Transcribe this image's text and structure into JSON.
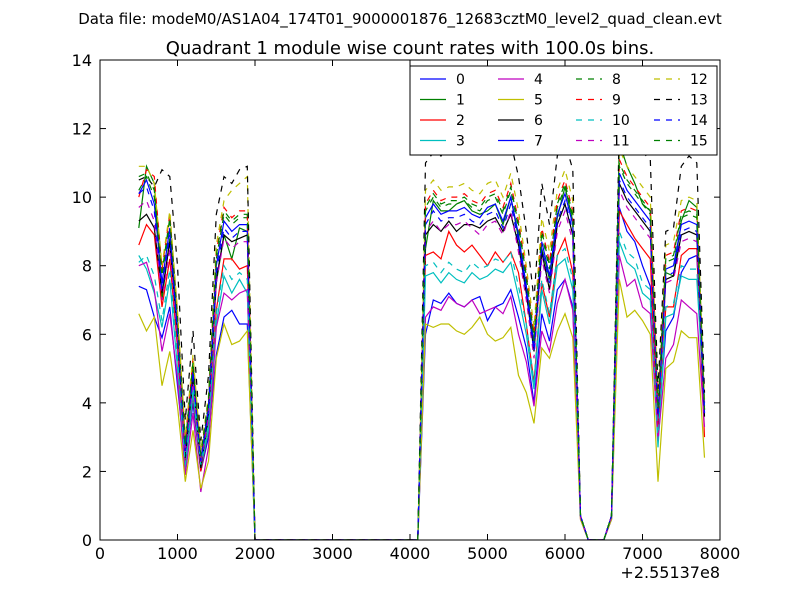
{
  "header": {
    "data_file": "Data file: modeM0/AS1A04_174T01_9000001876_12683cztM0_level2_quad_clean.evt"
  },
  "chart_data": {
    "type": "line",
    "title": "Quadrant 1 module wise count rates with 100.0s bins.",
    "xlabel": "",
    "ylabel": "",
    "x_offset_label": "+2.55137e8",
    "xlim": [
      0,
      8000
    ],
    "ylim": [
      0,
      14
    ],
    "x_ticks": [
      0,
      1000,
      2000,
      3000,
      4000,
      5000,
      6000,
      7000,
      8000
    ],
    "y_ticks": [
      0,
      2,
      4,
      6,
      8,
      10,
      12,
      14
    ],
    "grid": false,
    "legend_position": "top-right",
    "legend_columns": 4,
    "x": [
      500,
      600,
      700,
      800,
      900,
      1000,
      1100,
      1200,
      1300,
      1400,
      1500,
      1600,
      1700,
      1800,
      1900,
      2000,
      4100,
      4200,
      4300,
      4400,
      4500,
      4600,
      4700,
      4800,
      4900,
      5000,
      5100,
      5200,
      5300,
      5400,
      5500,
      5600,
      5700,
      5800,
      5900,
      6000,
      6100,
      6200,
      6300,
      6400,
      6500,
      6600,
      6700,
      6800,
      6900,
      7000,
      7100,
      7200,
      7300,
      7400,
      7500,
      7600,
      7700,
      7800
    ],
    "series": [
      {
        "name": "0",
        "color": "#0000ff",
        "dash": "solid",
        "values": [
          7.4,
          7.3,
          6.5,
          5.9,
          6.8,
          4.5,
          2.2,
          4.0,
          2.0,
          3.0,
          5.4,
          6.5,
          6.7,
          6.3,
          6.3,
          0,
          0,
          6.0,
          7.0,
          6.9,
          7.2,
          6.9,
          6.8,
          7.0,
          7.1,
          6.4,
          6.8,
          6.9,
          7.3,
          6.5,
          5.6,
          4.0,
          6.6,
          5.8,
          7.3,
          7.6,
          6.8,
          0.7,
          0,
          0,
          0,
          0.6,
          9.7,
          9.0,
          8.7,
          8.0,
          7.4,
          3.2,
          6.1,
          6.5,
          7.8,
          8.2,
          8.3,
          3.8
        ]
      },
      {
        "name": "1",
        "color": "#008000",
        "dash": "solid",
        "values": [
          9.1,
          10.9,
          10.4,
          7.0,
          8.8,
          6.0,
          2.5,
          4.8,
          2.1,
          3.5,
          7.5,
          8.9,
          8.2,
          9.1,
          9.0,
          0,
          0,
          8.5,
          9.9,
          9.6,
          9.6,
          9.8,
          9.9,
          9.6,
          9.5,
          9.6,
          9.8,
          9.2,
          10.0,
          8.8,
          7.4,
          5.7,
          8.5,
          7.6,
          9.4,
          10.3,
          9.3,
          0.7,
          0,
          0,
          0,
          0.7,
          11.6,
          10.9,
          10.4,
          9.8,
          9.6,
          3.5,
          7.8,
          7.7,
          9.3,
          9.9,
          9.7,
          4.0
        ]
      },
      {
        "name": "2",
        "color": "#ff0000",
        "dash": "solid",
        "values": [
          8.6,
          9.2,
          8.9,
          6.8,
          8.2,
          5.6,
          2.1,
          4.2,
          2.0,
          3.2,
          6.7,
          8.2,
          8.2,
          7.9,
          8.0,
          0,
          0,
          8.3,
          8.4,
          8.2,
          9.0,
          8.6,
          8.4,
          8.6,
          8.3,
          8.0,
          8.4,
          8.1,
          8.4,
          7.8,
          6.3,
          4.6,
          7.5,
          6.5,
          8.3,
          8.8,
          7.8,
          0.7,
          0,
          0,
          0,
          0.7,
          9.6,
          9.2,
          8.8,
          8.5,
          8.2,
          3.0,
          6.8,
          6.8,
          8.3,
          8.5,
          8.5,
          3.0
        ]
      },
      {
        "name": "3",
        "color": "#00bfbf",
        "dash": "solid",
        "values": [
          8.3,
          7.9,
          7.2,
          6.2,
          7.6,
          5.0,
          2.0,
          4.3,
          2.1,
          3.2,
          6.3,
          7.7,
          7.2,
          7.6,
          7.2,
          0,
          0,
          7.7,
          7.8,
          7.5,
          7.8,
          7.6,
          7.5,
          7.8,
          7.6,
          7.7,
          7.9,
          7.8,
          8.1,
          7.1,
          6.0,
          4.4,
          7.3,
          6.3,
          8.0,
          8.2,
          7.3,
          0.7,
          0,
          0,
          0,
          0.7,
          8.7,
          8.1,
          7.9,
          7.2,
          7.0,
          2.7,
          6.5,
          6.6,
          7.7,
          7.6,
          7.6,
          3.9
        ]
      },
      {
        "name": "4",
        "color": "#bf00bf",
        "dash": "solid",
        "values": [
          8.0,
          8.1,
          7.3,
          5.5,
          6.6,
          4.7,
          1.9,
          3.7,
          1.4,
          2.7,
          6.2,
          7.2,
          7.0,
          7.2,
          7.3,
          0,
          0,
          6.5,
          6.8,
          6.7,
          7.1,
          6.9,
          6.8,
          7.0,
          6.6,
          6.7,
          6.8,
          6.6,
          7.1,
          6.0,
          5.2,
          3.9,
          6.1,
          5.5,
          6.9,
          7.6,
          6.7,
          0.6,
          0,
          0,
          0,
          0.6,
          8.3,
          7.4,
          7.6,
          6.8,
          6.6,
          2.9,
          5.3,
          5.7,
          7.0,
          6.8,
          6.6,
          3.3
        ]
      },
      {
        "name": "5",
        "color": "#bfbf00",
        "dash": "solid",
        "values": [
          6.6,
          6.1,
          6.5,
          4.5,
          5.5,
          3.9,
          1.7,
          3.2,
          1.5,
          2.3,
          5.3,
          6.3,
          5.7,
          5.8,
          6.1,
          0,
          0,
          6.3,
          6.2,
          6.3,
          6.3,
          6.1,
          6.0,
          6.2,
          6.5,
          6.0,
          5.8,
          5.9,
          6.2,
          4.8,
          4.3,
          3.4,
          5.6,
          5.3,
          6.1,
          6.6,
          5.9,
          0.6,
          0,
          0,
          0,
          0.6,
          7.6,
          6.5,
          6.7,
          6.4,
          6.0,
          1.7,
          5.0,
          5.2,
          6.1,
          5.9,
          5.9,
          2.4
        ]
      },
      {
        "name": "6",
        "color": "#000000",
        "dash": "solid",
        "values": [
          9.3,
          9.5,
          9.1,
          7.2,
          8.7,
          6.0,
          2.4,
          4.7,
          2.1,
          3.7,
          7.6,
          8.9,
          8.7,
          8.8,
          8.9,
          0,
          0,
          8.9,
          9.2,
          9.0,
          9.3,
          9.0,
          9.2,
          9.2,
          9.1,
          9.3,
          9.4,
          9.0,
          9.5,
          8.6,
          7.2,
          5.5,
          8.4,
          7.3,
          9.2,
          9.8,
          8.9,
          0.7,
          0,
          0,
          0,
          0.7,
          10.4,
          9.9,
          9.6,
          9.3,
          9.0,
          3.6,
          7.6,
          7.7,
          8.9,
          9.0,
          8.9,
          3.6
        ]
      },
      {
        "name": "7",
        "color": "#0000ff",
        "dash": "solid",
        "values": [
          10.1,
          10.5,
          9.8,
          7.5,
          9.1,
          6.2,
          2.7,
          5.0,
          2.3,
          3.9,
          8.0,
          9.3,
          9.0,
          9.2,
          9.2,
          0,
          0,
          9.4,
          9.8,
          9.5,
          9.6,
          9.6,
          9.7,
          9.5,
          9.4,
          9.7,
          9.8,
          9.3,
          10.0,
          8.9,
          7.4,
          5.7,
          8.7,
          7.7,
          9.5,
          10.1,
          9.2,
          0.7,
          0,
          0,
          0,
          0.7,
          10.7,
          10.2,
          9.9,
          9.6,
          9.3,
          3.7,
          7.9,
          8.0,
          9.2,
          9.3,
          9.2,
          3.7
        ]
      },
      {
        "name": "8",
        "color": "#008000",
        "dash": "dashed",
        "values": [
          10.2,
          10.6,
          10.0,
          7.7,
          9.3,
          6.4,
          2.8,
          5.1,
          2.4,
          4.0,
          8.2,
          9.5,
          9.2,
          9.4,
          9.4,
          0,
          0,
          9.6,
          10.0,
          9.7,
          9.8,
          9.8,
          9.9,
          9.7,
          9.6,
          9.9,
          10.0,
          9.5,
          10.2,
          9.1,
          7.6,
          5.8,
          8.9,
          7.9,
          9.7,
          10.3,
          9.4,
          0.7,
          0,
          0,
          0,
          0.7,
          10.9,
          10.4,
          10.1,
          9.8,
          9.5,
          3.8,
          8.1,
          8.2,
          9.4,
          9.5,
          9.4,
          3.8
        ]
      },
      {
        "name": "9",
        "color": "#ff0000",
        "dash": "dashed",
        "values": [
          10.0,
          10.8,
          10.6,
          7.9,
          9.5,
          6.6,
          2.9,
          5.3,
          2.5,
          4.1,
          8.4,
          9.7,
          9.4,
          9.6,
          9.6,
          0,
          0,
          9.8,
          10.2,
          9.9,
          10.0,
          10.0,
          10.1,
          9.9,
          9.8,
          10.1,
          10.2,
          9.7,
          10.4,
          9.3,
          7.8,
          6.0,
          9.1,
          8.1,
          9.9,
          10.5,
          9.6,
          0.7,
          0,
          0,
          0,
          0.7,
          11.1,
          10.6,
          10.3,
          10.0,
          9.7,
          3.9,
          8.3,
          8.4,
          9.6,
          9.7,
          9.6,
          3.9
        ]
      },
      {
        "name": "10",
        "color": "#00bfbf",
        "dash": "dashed",
        "values": [
          8.1,
          8.3,
          7.7,
          6.4,
          7.9,
          5.3,
          2.2,
          4.5,
          2.2,
          3.4,
          6.6,
          8.0,
          7.6,
          7.8,
          7.6,
          0,
          0,
          8.0,
          8.1,
          7.8,
          8.1,
          7.9,
          7.8,
          8.1,
          7.9,
          8.0,
          8.2,
          8.1,
          8.4,
          7.4,
          6.3,
          4.6,
          7.6,
          6.6,
          8.3,
          8.5,
          7.6,
          0.7,
          0,
          0,
          0,
          0.7,
          9.0,
          8.4,
          8.2,
          7.5,
          7.3,
          2.9,
          6.8,
          6.9,
          8.0,
          7.9,
          7.9,
          4.1
        ]
      },
      {
        "name": "11",
        "color": "#bf00bf",
        "dash": "dashed",
        "values": [
          9.7,
          9.9,
          9.3,
          7.0,
          8.5,
          5.8,
          2.5,
          4.6,
          2.2,
          3.6,
          7.5,
          8.8,
          8.5,
          8.7,
          8.7,
          0,
          0,
          9.0,
          9.3,
          9.0,
          9.2,
          9.2,
          9.3,
          9.1,
          8.9,
          9.2,
          9.3,
          8.9,
          9.6,
          8.4,
          7.0,
          5.3,
          8.2,
          7.2,
          9.0,
          9.6,
          8.7,
          0.7,
          0,
          0,
          0,
          0.7,
          10.2,
          9.7,
          9.4,
          9.1,
          8.8,
          3.5,
          7.5,
          7.6,
          8.7,
          8.8,
          8.7,
          3.6
        ]
      },
      {
        "name": "12",
        "color": "#bfbf00",
        "dash": "dashed",
        "values": [
          10.9,
          10.9,
          10.4,
          8.0,
          9.6,
          6.7,
          3.0,
          5.4,
          2.6,
          4.2,
          8.6,
          9.9,
          10.2,
          10.4,
          10.6,
          0,
          0,
          10.2,
          10.5,
          10.2,
          10.3,
          10.3,
          10.4,
          10.2,
          10.1,
          10.4,
          10.5,
          10.0,
          10.7,
          9.6,
          8.0,
          6.2,
          9.4,
          8.4,
          10.2,
          10.8,
          9.9,
          0.7,
          0,
          0,
          0,
          0.7,
          11.4,
          10.9,
          10.6,
          10.3,
          10.0,
          4.1,
          8.6,
          8.7,
          9.9,
          10.0,
          9.9,
          4.0
        ]
      },
      {
        "name": "13",
        "color": "#000000",
        "dash": "dashed",
        "values": [
          10.5,
          10.6,
          10.3,
          10.8,
          10.6,
          8.0,
          3.5,
          6.1,
          2.9,
          4.8,
          9.5,
          10.6,
          10.4,
          10.8,
          10.9,
          0,
          0,
          11.0,
          11.3,
          11.2,
          11.5,
          11.4,
          11.3,
          11.8,
          11.5,
          11.4,
          11.6,
          11.3,
          11.6,
          10.6,
          9.0,
          7.0,
          10.4,
          9.2,
          11.2,
          11.6,
          10.8,
          0.7,
          0,
          0,
          0,
          0.7,
          12.1,
          11.5,
          11.4,
          11.3,
          11.1,
          4.4,
          9.0,
          9.1,
          10.9,
          11.2,
          11.0,
          4.3
        ]
      },
      {
        "name": "14",
        "color": "#0000ff",
        "dash": "dashed",
        "values": [
          10.1,
          10.3,
          9.6,
          7.3,
          8.9,
          6.0,
          2.6,
          4.9,
          2.3,
          3.8,
          7.8,
          9.1,
          8.8,
          9.0,
          9.0,
          0,
          0,
          9.2,
          9.6,
          9.3,
          9.4,
          9.4,
          9.5,
          9.3,
          9.2,
          9.5,
          9.6,
          9.1,
          9.8,
          8.7,
          7.2,
          5.5,
          8.5,
          7.5,
          9.3,
          9.9,
          9.0,
          0.7,
          0,
          0,
          0,
          0.7,
          10.5,
          10.0,
          9.7,
          9.4,
          9.1,
          3.6,
          7.7,
          7.8,
          9.0,
          9.1,
          9.0,
          3.7
        ]
      },
      {
        "name": "15",
        "color": "#008000",
        "dash": "dashed",
        "values": [
          10.6,
          10.7,
          10.2,
          7.8,
          9.4,
          6.5,
          2.8,
          5.2,
          2.5,
          4.1,
          8.3,
          9.6,
          9.3,
          9.5,
          9.5,
          0,
          0,
          9.7,
          10.1,
          9.8,
          9.9,
          9.9,
          10.0,
          9.8,
          9.7,
          10.0,
          10.1,
          9.6,
          10.3,
          9.2,
          7.7,
          5.9,
          9.0,
          8.0,
          9.8,
          10.4,
          9.5,
          0.7,
          0,
          0,
          0,
          0.7,
          11.0,
          10.5,
          10.2,
          9.9,
          9.6,
          3.8,
          8.2,
          8.3,
          9.5,
          9.6,
          9.5,
          3.8
        ]
      }
    ]
  }
}
